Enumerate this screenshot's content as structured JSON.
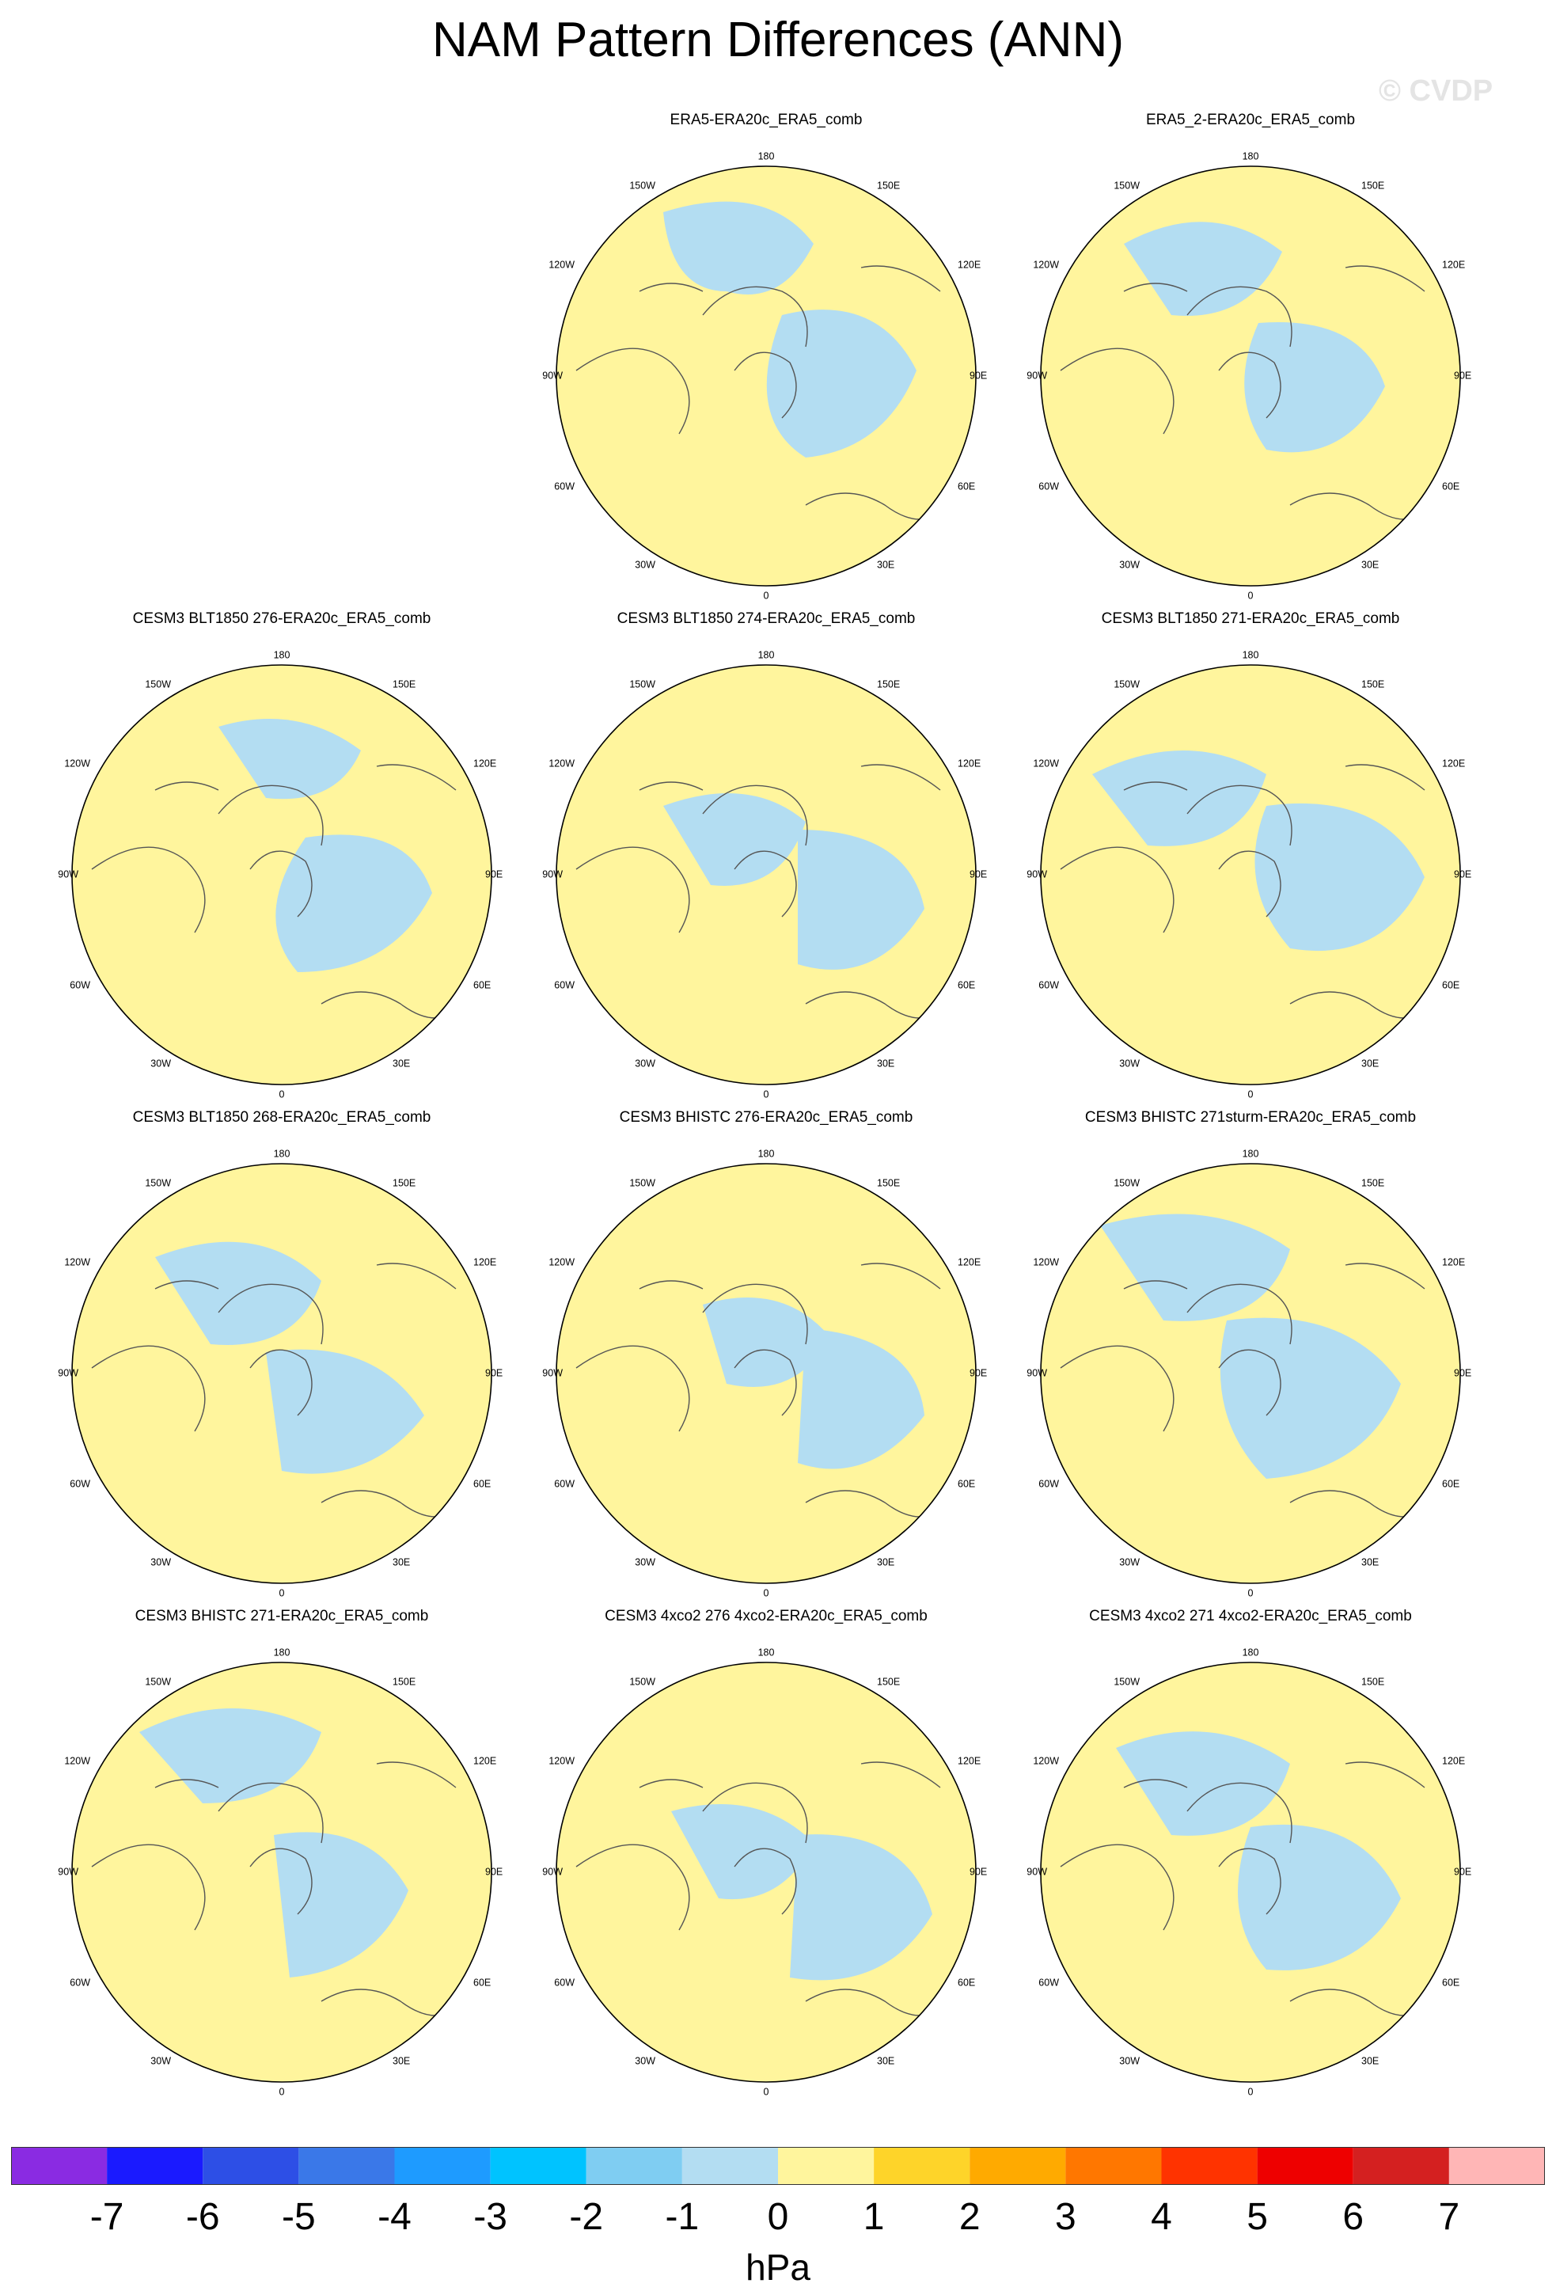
{
  "title": "NAM Pattern Differences (ANN)",
  "watermark": "© CVDP",
  "colors": {
    "negative_small": "#b3ddf2",
    "positive_small": "#fff59d",
    "land_outline": "#555555",
    "frame": "#000000"
  },
  "projection": "north-polar-stereographic",
  "longitude_labels": {
    "top": "180",
    "upper_left": "150W",
    "upper_right": "150E",
    "left_upper": "120W",
    "right_upper": "120E",
    "left": "90W",
    "right": "90E",
    "left_lower": "60W",
    "right_lower": "60E",
    "lower_left": "30W",
    "lower_right": "30E",
    "bottom": "0"
  },
  "panels": [
    {
      "title": "ERA5-ERA20c_ERA5_comb"
    },
    {
      "title": "ERA5_2-ERA20c_ERA5_comb"
    },
    {
      "title": "CESM3 BLT1850 276-ERA20c_ERA5_comb"
    },
    {
      "title": "CESM3 BLT1850 274-ERA20c_ERA5_comb"
    },
    {
      "title": "CESM3 BLT1850 271-ERA20c_ERA5_comb"
    },
    {
      "title": "CESM3 BLT1850 268-ERA20c_ERA5_comb"
    },
    {
      "title": "CESM3 BHISTC 276-ERA20c_ERA5_comb"
    },
    {
      "title": "CESM3 BHISTC 271sturm-ERA20c_ERA5_comb"
    },
    {
      "title": "CESM3 BHISTC 271-ERA20c_ERA5_comb"
    },
    {
      "title": "CESM3 4xco2 276 4xco2-ERA20c_ERA5_comb"
    },
    {
      "title": "CESM3 4xco2 271 4xco2-ERA20c_ERA5_comb"
    }
  ],
  "colorbar": {
    "unit": "hPa",
    "tick_labels": [
      "-7",
      "-6",
      "-5",
      "-4",
      "-3",
      "-2",
      "-1",
      "0",
      "1",
      "2",
      "3",
      "4",
      "5",
      "6",
      "7"
    ],
    "colors": [
      "#8a2be2",
      "#1a1aff",
      "#2d4fe6",
      "#3a78e8",
      "#1e9bff",
      "#00c3ff",
      "#7fcdf2",
      "#b3ddf2",
      "#fff59d",
      "#fed429",
      "#ffaa00",
      "#ff7700",
      "#ff3300",
      "#ee0000",
      "#d42020",
      "#ffb6b6"
    ]
  }
}
